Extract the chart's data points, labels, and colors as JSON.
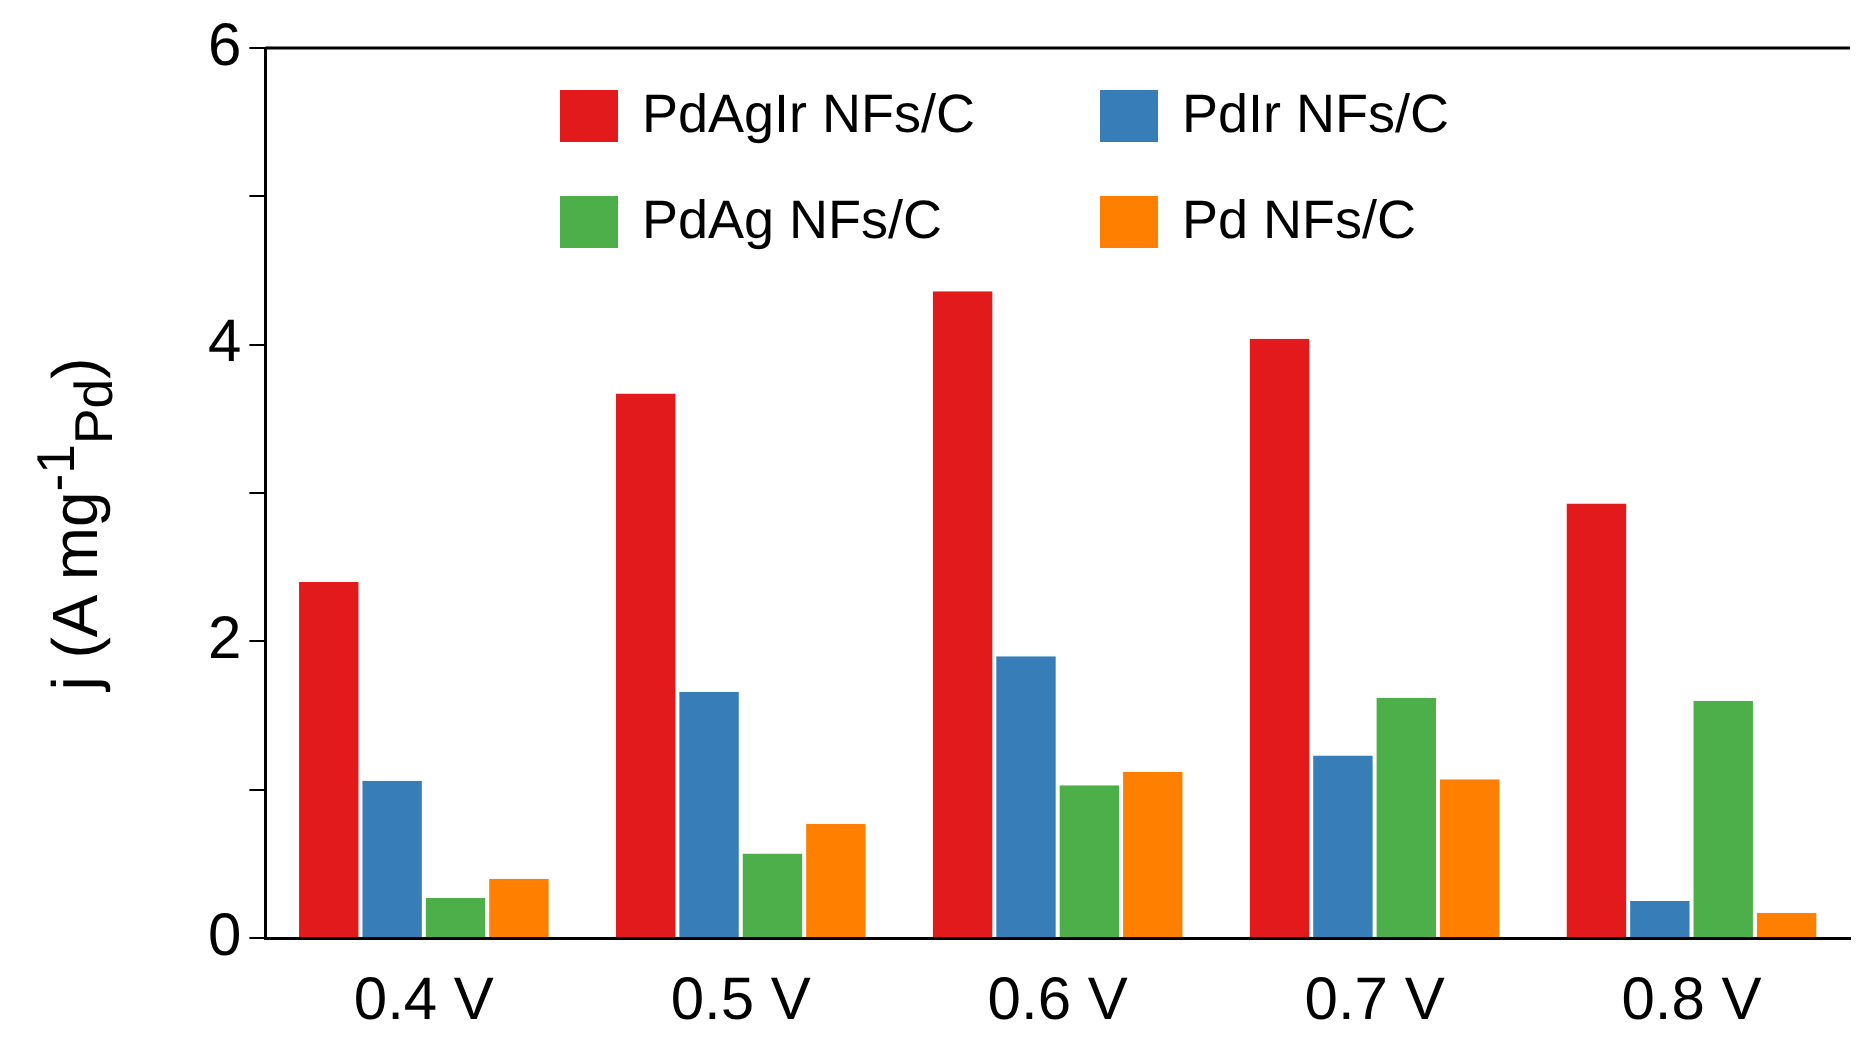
{
  "chart_data": {
    "type": "bar",
    "ylabel": "j (A mg$^{-1}$$_{Pd}$)",
    "categories": [
      "0.4 V",
      "0.5 V",
      "0.6 V",
      "0.7 V",
      "0.8 V"
    ],
    "series": [
      {
        "name": "PdAgIr NFs/C",
        "color": "#e31a1c",
        "values": [
          2.4,
          3.67,
          4.36,
          4.04,
          2.93
        ]
      },
      {
        "name": "PdIr NFs/C",
        "color": "#377eb8",
        "values": [
          1.06,
          1.66,
          1.9,
          1.23,
          0.25
        ]
      },
      {
        "name": "PdAg NFs/C",
        "color": "#4daf4a",
        "values": [
          0.27,
          0.57,
          1.03,
          1.62,
          1.6
        ]
      },
      {
        "name": "Pd NFs/C",
        "color": "#ff7f00",
        "values": [
          0.4,
          0.77,
          1.12,
          1.07,
          0.17
        ]
      }
    ],
    "ylim": [
      0,
      6
    ],
    "yticks": [
      0,
      {
        "value": 1,
        "label": null
      },
      2,
      {
        "value": 3,
        "label": null
      },
      4,
      {
        "value": 5,
        "label": null
      },
      6
    ],
    "grid": false,
    "legend": "top right"
  }
}
